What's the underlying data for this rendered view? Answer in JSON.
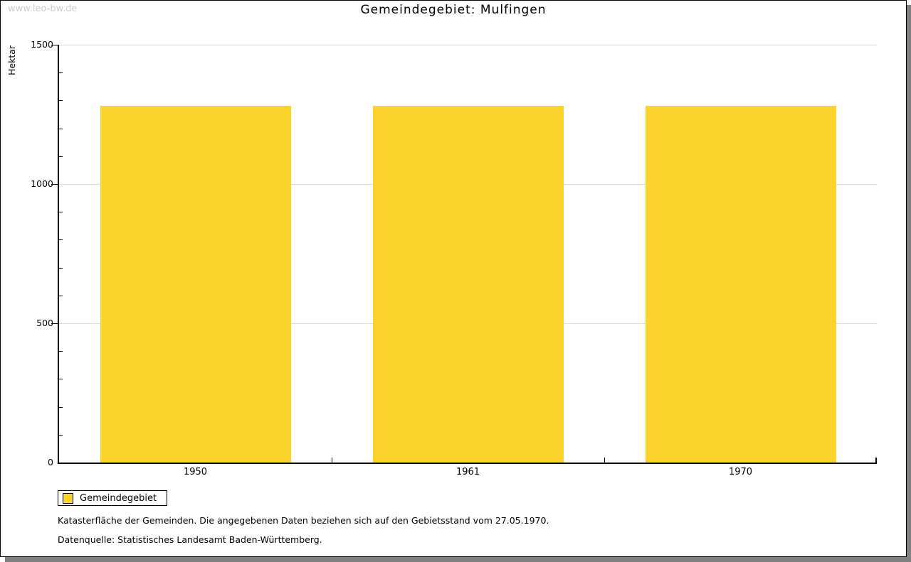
{
  "watermark": "www.leo-bw.de",
  "header": {
    "title": "Gemeindegebiet: Mulfingen"
  },
  "chart_data": {
    "type": "bar",
    "title": "Gemeindegebiet: Mulfingen",
    "categories": [
      "1950",
      "1961",
      "1970"
    ],
    "series": [
      {
        "name": "Gemeindegebiet",
        "values": [
          1281,
          1281,
          1281
        ]
      }
    ],
    "xlabel": "",
    "ylabel": "Hektar",
    "ylim": [
      0,
      1500
    ],
    "yticks_major": [
      0,
      500,
      1000,
      1500
    ],
    "ytick_minor_step": 100,
    "grid": "horizontal gridlines at major ticks",
    "legend_position": "bottom-left",
    "bar_color": "#FCD42D"
  },
  "legend": {
    "items": [
      {
        "label": "Gemeindegebiet",
        "color": "#FCD42D"
      }
    ]
  },
  "footnotes": {
    "line1": "Katasterfläche der Gemeinden. Die angegebenen Daten beziehen sich auf den Gebietsstand vom 27.05.1970.",
    "line2": "Datenquelle: Statistisches Landesamt Baden-Württemberg."
  },
  "colors": {
    "bar": "#FCD42D",
    "grid": "#DCDCDC",
    "axis": "#000000",
    "text": "#000000",
    "watermark": "#CCCCCC",
    "shadow": "#808080"
  }
}
